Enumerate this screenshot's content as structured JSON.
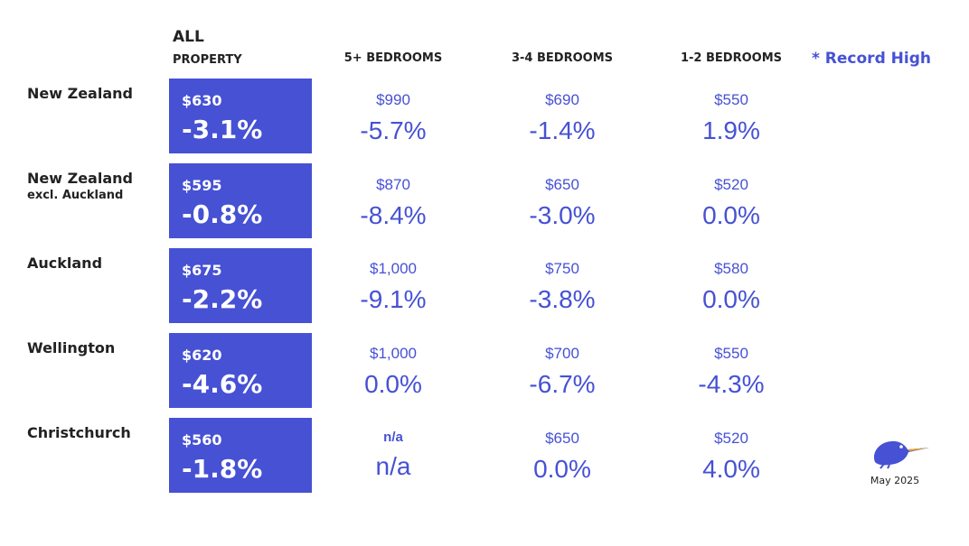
{
  "header": {
    "all": "ALL",
    "property": "PROPERTY",
    "col_5plus": "5+ BEDROOMS",
    "col_3_4": "3-4 BEDROOMS",
    "col_1_2": "1-2 BEDROOMS",
    "record_high": "* Record High"
  },
  "rows": [
    {
      "region": "New Zealand",
      "region_sub": "",
      "all_price": "$630",
      "all_pct": "-3.1%",
      "b5_price": "$990",
      "b5_pct": "-5.7%",
      "b34_price": "$690",
      "b34_pct": "-1.4%",
      "b12_price": "$550",
      "b12_pct": "1.9%"
    },
    {
      "region": "New Zealand",
      "region_sub": "excl. Auckland",
      "all_price": "$595",
      "all_pct": "-0.8%",
      "b5_price": "$870",
      "b5_pct": "-8.4%",
      "b34_price": "$650",
      "b34_pct": "-3.0%",
      "b12_price": "$520",
      "b12_pct": "0.0%"
    },
    {
      "region": "Auckland",
      "region_sub": "",
      "all_price": "$675",
      "all_pct": "-2.2%",
      "b5_price": "$1,000",
      "b5_pct": "-9.1%",
      "b34_price": "$750",
      "b34_pct": "-3.8%",
      "b12_price": "$580",
      "b12_pct": "0.0%"
    },
    {
      "region": "Wellington",
      "region_sub": "",
      "all_price": "$620",
      "all_pct": "-4.6%",
      "b5_price": "$1,000",
      "b5_pct": "0.0%",
      "b34_price": "$700",
      "b34_pct": "-6.7%",
      "b12_price": "$550",
      "b12_pct": "-4.3%"
    },
    {
      "region": "Christchurch",
      "region_sub": "",
      "all_price": "$560",
      "all_pct": "-1.8%",
      "b5_price": "n/a",
      "b5_pct": "n/a",
      "b34_price": "$650",
      "b34_pct": "0.0%",
      "b12_price": "$520",
      "b12_pct": "4.0%"
    }
  ],
  "footer": {
    "date": "May 2025",
    "logo_icon": "kiwi-bird-icon"
  },
  "colors": {
    "accent": "#4651d4",
    "text": "#222222"
  }
}
